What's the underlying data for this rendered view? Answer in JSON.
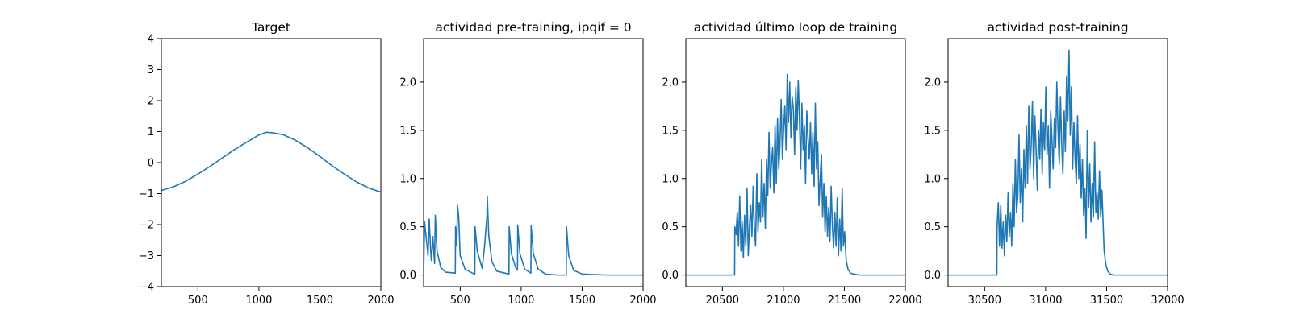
{
  "chart_data": [
    {
      "type": "line",
      "title": "Target",
      "xlim": [
        200,
        2000
      ],
      "ylim": [
        -4,
        4
      ],
      "xticks": [
        500,
        1000,
        1500,
        2000
      ],
      "yticks": [
        -4,
        -3,
        -2,
        -1,
        0,
        1,
        2,
        3,
        4
      ],
      "grid": false,
      "series": [
        {
          "color": "#1f77b4",
          "x": [
            200,
            300,
            400,
            500,
            600,
            700,
            800,
            900,
            1000,
            1060,
            1100,
            1200,
            1300,
            1400,
            1500,
            1600,
            1700,
            1800,
            1900,
            2000
          ],
          "y": [
            -0.9,
            -0.78,
            -0.6,
            -0.37,
            -0.12,
            0.15,
            0.42,
            0.66,
            0.89,
            0.98,
            0.97,
            0.9,
            0.72,
            0.48,
            0.2,
            -0.1,
            -0.37,
            -0.62,
            -0.82,
            -0.95
          ]
        }
      ]
    },
    {
      "type": "line",
      "title": "actividad pre-training, ipqif = 0",
      "xlim": [
        200,
        2000
      ],
      "ylim": [
        -0.12,
        2.45
      ],
      "xticks": [
        500,
        1000,
        1500,
        2000
      ],
      "yticks": [
        0.0,
        0.5,
        1.0,
        1.5,
        2.0
      ],
      "grid": false,
      "series": [
        {
          "color": "#1f77b4",
          "x": [
            200,
            208,
            230,
            236,
            246,
            258,
            264,
            276,
            290,
            296,
            310,
            340,
            380,
            460,
            462,
            472,
            478,
            488,
            500,
            540,
            600,
            620,
            622,
            640,
            680,
            700,
            720,
            722,
            735,
            760,
            800,
            900,
            902,
            920,
            960,
            970,
            972,
            990,
            1030,
            1080,
            1082,
            1100,
            1140,
            1200,
            1300,
            1370,
            1372,
            1390,
            1430,
            1500,
            1700,
            2000
          ],
          "y": [
            0.0,
            0.55,
            0.28,
            0.2,
            0.58,
            0.25,
            0.15,
            0.4,
            0.12,
            0.62,
            0.25,
            0.08,
            0.03,
            0.02,
            0.5,
            0.3,
            0.72,
            0.6,
            0.2,
            0.06,
            0.02,
            0.01,
            0.5,
            0.25,
            0.07,
            0.3,
            0.62,
            0.82,
            0.4,
            0.14,
            0.04,
            0.01,
            0.5,
            0.22,
            0.06,
            0.05,
            0.52,
            0.22,
            0.06,
            0.02,
            0.51,
            0.22,
            0.06,
            0.01,
            0.0,
            0.0,
            0.5,
            0.2,
            0.05,
            0.01,
            0.0,
            0.0
          ]
        }
      ]
    },
    {
      "type": "line",
      "title": "actividad último loop de training",
      "xlim": [
        20200,
        22000
      ],
      "ylim": [
        -0.12,
        2.45
      ],
      "xticks": [
        20500,
        21000,
        21500,
        22000
      ],
      "yticks": [
        0.0,
        0.5,
        1.0,
        1.5,
        2.0
      ],
      "grid": false,
      "series": [
        {
          "color": "#1f77b4",
          "x": [
            20200,
            20600,
            20602,
            20612,
            20622,
            20632,
            20642,
            20652,
            20662,
            20672,
            20682,
            20692,
            20702,
            20712,
            20722,
            20732,
            20742,
            20752,
            20762,
            20772,
            20782,
            20792,
            20802,
            20812,
            20822,
            20832,
            20842,
            20852,
            20862,
            20872,
            20882,
            20892,
            20902,
            20912,
            20922,
            20932,
            20942,
            20952,
            20962,
            20972,
            20982,
            20992,
            21002,
            21012,
            21022,
            21032,
            21042,
            21052,
            21062,
            21072,
            21082,
            21092,
            21102,
            21112,
            21122,
            21132,
            21142,
            21152,
            21162,
            21172,
            21182,
            21192,
            21202,
            21212,
            21222,
            21232,
            21242,
            21252,
            21262,
            21272,
            21282,
            21292,
            21302,
            21312,
            21322,
            21332,
            21342,
            21352,
            21362,
            21372,
            21382,
            21392,
            21402,
            21412,
            21422,
            21432,
            21442,
            21452,
            21462,
            21472,
            21482,
            21492,
            21502,
            21515,
            21530,
            21550,
            21580,
            21620,
            21700,
            22000
          ],
          "y": [
            0.0,
            0.0,
            0.5,
            0.42,
            0.65,
            0.3,
            0.82,
            0.25,
            0.55,
            0.18,
            0.62,
            0.3,
            0.9,
            0.2,
            0.5,
            0.72,
            0.4,
            0.92,
            0.5,
            0.3,
            1.05,
            0.45,
            0.75,
            0.55,
            1.2,
            0.6,
            0.95,
            0.48,
            1.2,
            0.82,
            1.48,
            0.9,
            1.15,
            1.32,
            0.85,
            1.55,
            0.95,
            1.62,
            1.1,
            1.35,
            1.82,
            1.2,
            1.52,
            1.75,
            1.3,
            2.08,
            1.58,
            2.0,
            1.42,
            1.85,
            1.72,
            1.25,
            1.95,
            1.5,
            2.02,
            1.62,
            1.1,
            1.78,
            1.3,
            1.55,
            0.95,
            1.7,
            1.42,
            1.2,
            1.58,
            1.05,
            1.48,
            0.92,
            1.78,
            1.1,
            1.38,
            0.72,
            1.0,
            1.25,
            0.6,
            0.95,
            0.45,
            0.82,
            0.4,
            0.7,
            0.35,
            0.92,
            0.5,
            0.28,
            0.65,
            0.3,
            0.8,
            0.2,
            0.58,
            0.25,
            0.9,
            0.3,
            0.45,
            0.15,
            0.06,
            0.02,
            0.01,
            0.0,
            0.0,
            0.0
          ]
        }
      ]
    },
    {
      "type": "line",
      "title": "actividad post-training",
      "xlim": [
        30200,
        32000
      ],
      "ylim": [
        -0.12,
        2.45
      ],
      "xticks": [
        30500,
        31000,
        31500,
        32000
      ],
      "yticks": [
        0.0,
        0.5,
        1.0,
        1.5,
        2.0
      ],
      "grid": false,
      "series": [
        {
          "color": "#1f77b4",
          "x": [
            30200,
            30600,
            30602,
            30612,
            30622,
            30632,
            30642,
            30652,
            30662,
            30672,
            30682,
            30692,
            30702,
            30712,
            30722,
            30732,
            30742,
            30752,
            30762,
            30772,
            30782,
            30792,
            30802,
            30812,
            30822,
            30832,
            30842,
            30852,
            30862,
            30872,
            30882,
            30892,
            30902,
            30912,
            30922,
            30932,
            30942,
            30952,
            30962,
            30972,
            30982,
            30992,
            31002,
            31012,
            31022,
            31032,
            31042,
            31052,
            31062,
            31072,
            31082,
            31092,
            31102,
            31112,
            31122,
            31132,
            31142,
            31152,
            31162,
            31172,
            31182,
            31192,
            31202,
            31212,
            31222,
            31232,
            31242,
            31252,
            31262,
            31272,
            31282,
            31292,
            31302,
            31312,
            31322,
            31332,
            31342,
            31352,
            31362,
            31372,
            31382,
            31392,
            31402,
            31412,
            31422,
            31432,
            31442,
            31452,
            31462,
            31472,
            31480,
            31495,
            31510,
            31530,
            31560,
            31600,
            31700,
            32000
          ],
          "y": [
            0.0,
            0.0,
            0.5,
            0.75,
            0.3,
            0.72,
            0.28,
            0.55,
            0.2,
            0.62,
            0.35,
            0.85,
            0.4,
            0.65,
            0.3,
            0.95,
            0.5,
            1.2,
            0.65,
            0.82,
            1.45,
            0.75,
            1.1,
            0.55,
            1.3,
            0.9,
            1.55,
            0.95,
            1.75,
            1.1,
            1.35,
            1.8,
            1.0,
            1.65,
            1.3,
            0.88,
            1.5,
            1.2,
            1.72,
            1.05,
            1.58,
            1.3,
            1.95,
            1.25,
            1.55,
            0.9,
            1.7,
            1.4,
            1.1,
            1.62,
            1.32,
            2.0,
            1.5,
            1.15,
            1.85,
            1.35,
            1.05,
            1.7,
            1.28,
            2.05,
            1.6,
            2.33,
            1.45,
            1.95,
            1.1,
            1.58,
            1.2,
            0.95,
            1.65,
            1.0,
            1.35,
            0.8,
            1.2,
            0.62,
            0.9,
            0.38,
            1.5,
            0.7,
            1.15,
            0.55,
            0.95,
            0.6,
            1.38,
            0.65,
            0.85,
            0.58,
            1.08,
            0.6,
            0.88,
            0.52,
            0.25,
            0.1,
            0.04,
            0.01,
            0.0,
            0.0,
            0.0,
            0.0
          ]
        }
      ]
    }
  ]
}
